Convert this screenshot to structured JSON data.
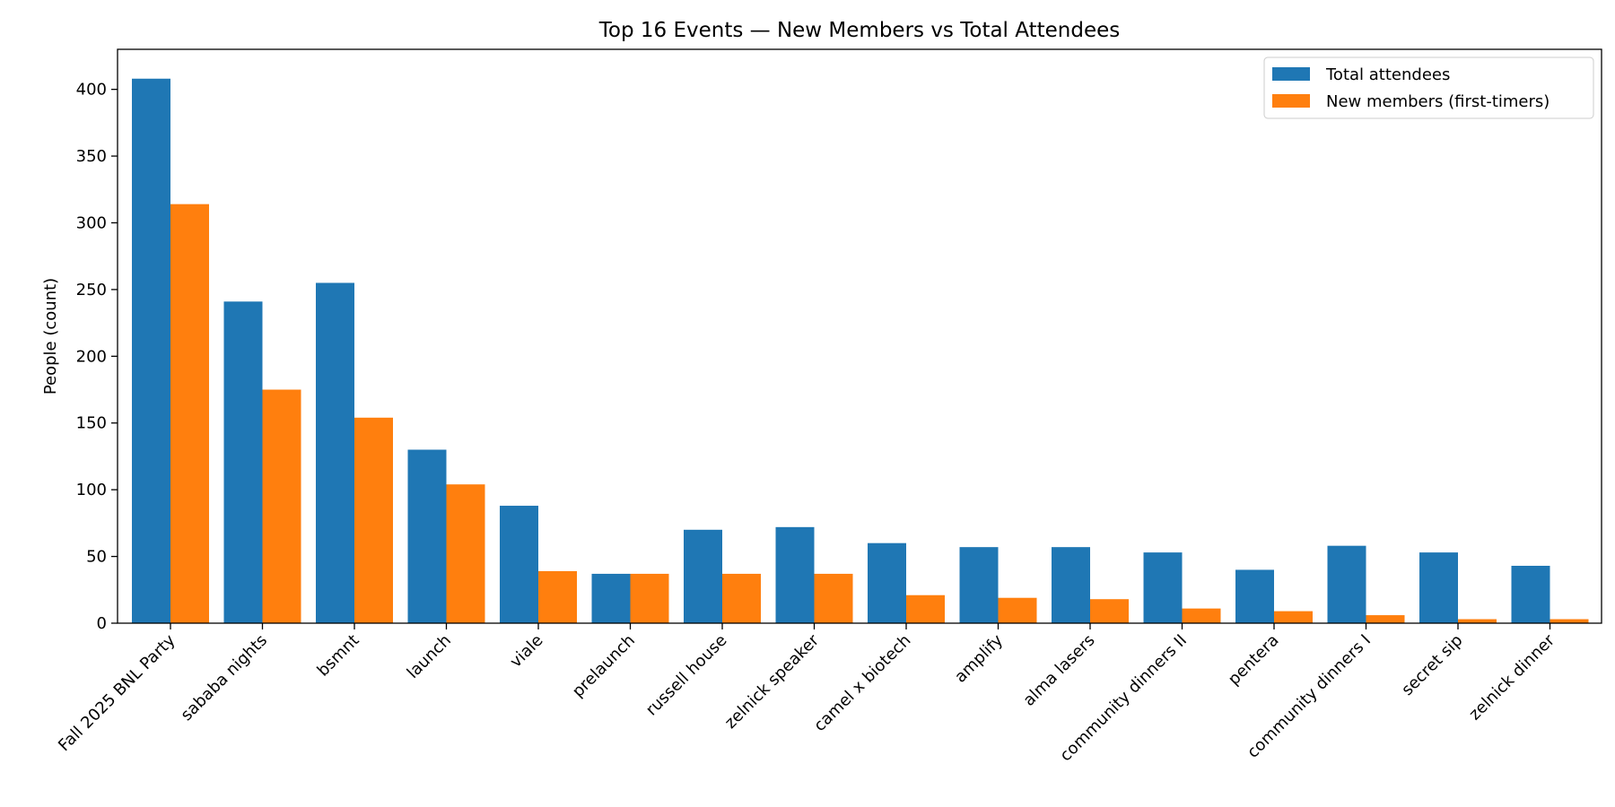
{
  "chart_data": {
    "type": "bar",
    "title": "Top 16 Events — New Members vs Total Attendees",
    "xlabel": "",
    "ylabel": "People (count)",
    "ylim": [
      0,
      430
    ],
    "yticks": [
      0,
      50,
      100,
      150,
      200,
      250,
      300,
      350,
      400
    ],
    "grid": false,
    "legend_position": "top-right",
    "categories": [
      "Fall 2025 BNL Party",
      "sababa nights",
      "bsmnt",
      "launch",
      "viale",
      "prelaunch",
      "russell house",
      "zelnick speaker",
      "camel x biotech",
      "amplify",
      "alma lasers",
      "community dinners II",
      "pentera",
      "community dinners I",
      "secret sip",
      "zelnick dinner"
    ],
    "series": [
      {
        "name": "Total attendees",
        "color": "#1f77b4",
        "values": [
          408,
          241,
          255,
          130,
          88,
          37,
          70,
          72,
          60,
          57,
          57,
          53,
          40,
          58,
          53,
          43
        ]
      },
      {
        "name": "New members (first-timers)",
        "color": "#ff7f0e",
        "values": [
          314,
          175,
          154,
          104,
          39,
          37,
          37,
          37,
          21,
          19,
          18,
          11,
          9,
          6,
          3,
          3
        ]
      }
    ]
  }
}
